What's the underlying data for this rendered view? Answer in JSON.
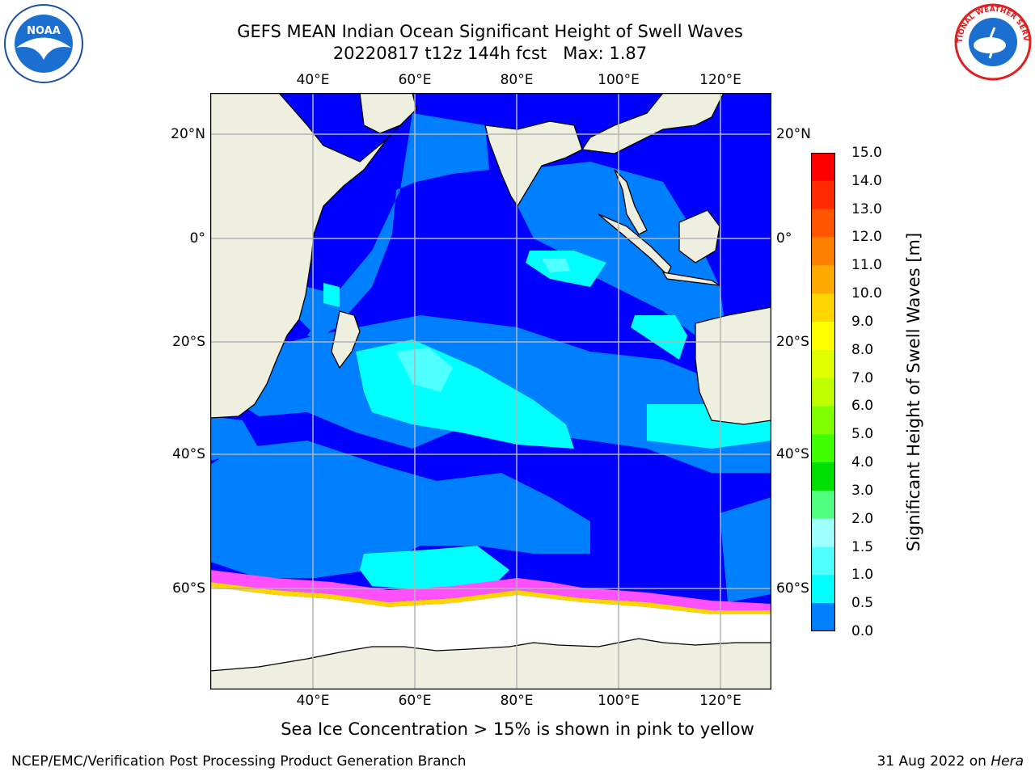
{
  "title": {
    "line1": "GEFS MEAN Indian Ocean Significant Height of Swell Waves",
    "line2": "20220817 t12z 144h fcst   Max: 1.87"
  },
  "axes": {
    "lon_labels": [
      "40°E",
      "60°E",
      "80°E",
      "100°E",
      "120°E"
    ],
    "lat_labels": [
      "20°N",
      "0°",
      "20°S",
      "40°S",
      "60°S"
    ]
  },
  "colorbar": {
    "title": "Significant Height of Swell Waves [m]",
    "labels": [
      "15.0",
      "14.0",
      "13.0",
      "12.0",
      "11.0",
      "10.0",
      "9.0",
      "8.0",
      "7.0",
      "6.0",
      "5.0",
      "4.0",
      "3.0",
      "2.0",
      "1.5",
      "1.0",
      "0.5",
      "0.0"
    ],
    "colors": [
      "#ff0000",
      "#ff2a00",
      "#ff5500",
      "#ff8000",
      "#ffaa00",
      "#ffd500",
      "#ffff00",
      "#e0ff00",
      "#c0ff00",
      "#80ff00",
      "#40ff00",
      "#00e000",
      "#50ff80",
      "#a0ffff",
      "#50ffff",
      "#00ffff",
      "#0080ff",
      "#0000ff"
    ]
  },
  "footnote": "Sea Ice Concentration > 15% is shown in pink to yellow",
  "footer": {
    "left": "NCEP/EMC/Verification Post Processing Product Generation Branch",
    "right_date": "31 Aug 2022 on ",
    "right_host": "Hera"
  },
  "logos": {
    "noaa_text": "NOAA",
    "nws_text": "NATIONAL WEATHER SERVICE"
  },
  "map_colors": {
    "land": "#efefdf",
    "ocean_0": "#0000ff",
    "ocean_05": "#0080ff",
    "ocean_1": "#00ffff",
    "ocean_15": "#50ffff",
    "ice": "#ff50ff",
    "ice_edge": "#ffd500",
    "grid": "#b4b4b4"
  }
}
